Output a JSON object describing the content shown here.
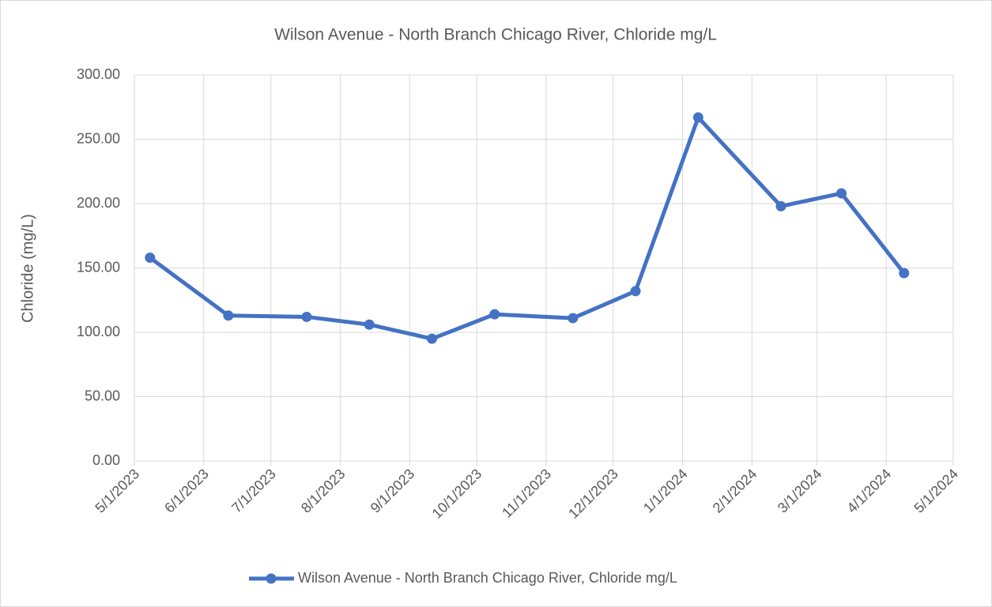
{
  "chart_data": {
    "type": "line",
    "title": "Wilson Avenue - North Branch Chicago River, Chloride mg/L",
    "y_label": "Chloride (mg/L)",
    "x": [
      "5/8/2023",
      "6/12/2023",
      "7/17/2023",
      "8/14/2023",
      "9/11/2023",
      "10/9/2023",
      "11/13/2023",
      "12/11/2023",
      "1/8/2024",
      "2/14/2024",
      "3/12/2024",
      "4/9/2024"
    ],
    "series": [
      {
        "name": "Wilson Avenue - North Branch Chicago River, Chloride mg/L",
        "color": "#4472c4",
        "values": [
          158,
          113,
          112,
          106,
          95,
          114,
          111,
          132,
          267,
          198,
          208,
          146
        ]
      }
    ],
    "xlim": [
      "5/1/2023",
      "5/1/2024"
    ],
    "xticks": [
      "5/1/2023",
      "6/1/2023",
      "7/1/2023",
      "8/1/2023",
      "9/1/2023",
      "10/1/2023",
      "11/1/2023",
      "12/1/2023",
      "1/1/2024",
      "2/1/2024",
      "3/1/2024",
      "4/1/2024",
      "5/1/2024"
    ],
    "ylim": [
      0,
      300
    ],
    "yticks": [
      {
        "value": 0,
        "label": "0.00"
      },
      {
        "value": 50,
        "label": "50.00"
      },
      {
        "value": 100,
        "label": "100.00"
      },
      {
        "value": 150,
        "label": "150.00"
      },
      {
        "value": 200,
        "label": "200.00"
      },
      {
        "value": 250,
        "label": "250.00"
      },
      {
        "value": 300,
        "label": "300.00"
      }
    ],
    "grid": true,
    "legend": "bottom"
  }
}
